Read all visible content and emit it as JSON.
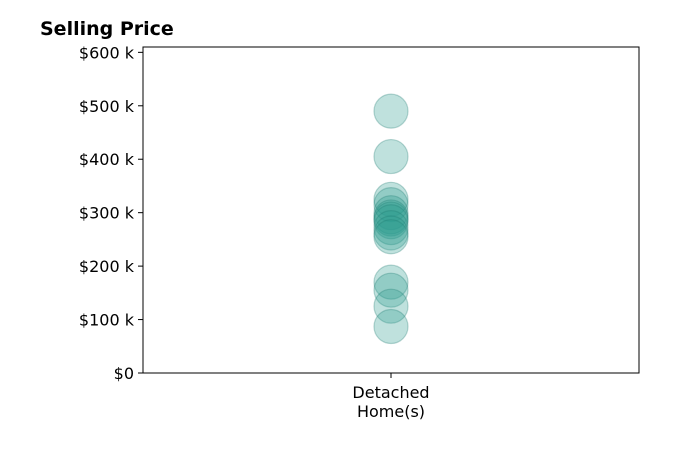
{
  "chart_data": {
    "type": "scatter",
    "title": "Selling Price",
    "xlabel": "",
    "ylabel": "",
    "categories": [
      "Detached Home(s)"
    ],
    "category_tick_lines": [
      "Detached",
      "Home(s)"
    ],
    "ylim": [
      0,
      610000
    ],
    "yticks": [
      0,
      100000,
      200000,
      300000,
      400000,
      500000,
      600000
    ],
    "ytick_labels": [
      "$0",
      "$100 k",
      "$200 k",
      "$300 k",
      "$400 k",
      "$500 k",
      "$600 k"
    ],
    "grid": false,
    "legend": "none",
    "marker_color": "#2a9d8f",
    "marker_edge_color": "#1f7a6f",
    "marker_alpha": 0.3,
    "series": [
      {
        "category": "Detached Home(s)",
        "values": [
          490000,
          405000,
          325000,
          315000,
          300000,
          292000,
          288000,
          283000,
          272000,
          262000,
          255000,
          170000,
          155000,
          125000,
          87000
        ]
      }
    ]
  }
}
